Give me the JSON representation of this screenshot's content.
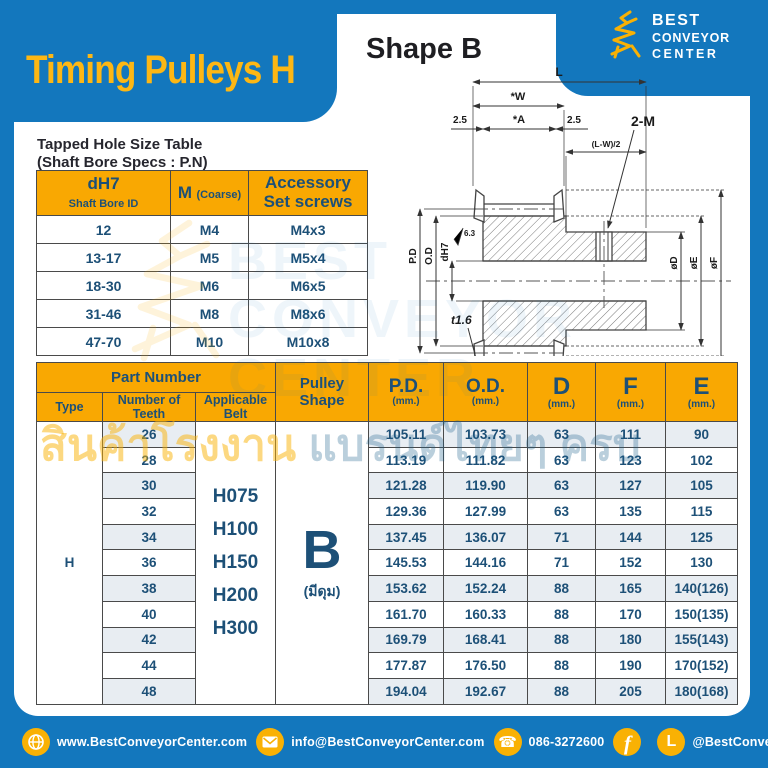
{
  "colors": {
    "blue": "#1377BD",
    "brand_yellow": "#F9B104",
    "title_yellow": "#FDB714",
    "navy_text": "#1D5077",
    "table_header_yellow": "#F9A802",
    "row_stripe": "#E8EDF2"
  },
  "header": {
    "title": "Timing Pulleys H"
  },
  "brand": {
    "lines": [
      "BEST",
      "CONVEYOR",
      "CENTER"
    ]
  },
  "shape_heading": "Shape B",
  "diagram": {
    "dim_l": "L",
    "dim_w": "*W",
    "dim_a": "*A",
    "dim_side": "2.5",
    "dim_lw2": "(L-W)/2",
    "tapped_hole": "2-M",
    "pitch_dia": "P.D",
    "outer_dia": "O.D",
    "bore": "dH7",
    "roughness": "6.3",
    "dia_d": "øD",
    "dia_e": "øE",
    "dia_f": "øF",
    "flange_thickness": "t1.6"
  },
  "tapped_table": {
    "title_line1": "Tapped Hole Size Table",
    "title_line2": "(Shaft Bore Specs : P.N)",
    "headers": [
      {
        "main": "dH7",
        "sub": "Shaft Bore ID"
      },
      {
        "main": "M",
        "sub": "(Coarse)"
      },
      {
        "main": "Accessory",
        "sub": "Set screws"
      }
    ],
    "rows": [
      [
        "12",
        "M4",
        "M4x3"
      ],
      [
        "13-17",
        "M5",
        "M5x4"
      ],
      [
        "18-30",
        "M6",
        "M6x5"
      ],
      [
        "31-46",
        "M8",
        "M8x6"
      ],
      [
        "47-70",
        "M10",
        "M10x8"
      ]
    ]
  },
  "main_table": {
    "group_header": "Part Number",
    "col_type": "Type",
    "col_teeth": "Number of Teeth",
    "col_belt": "Applicable Belt",
    "col_shape": "Pulley Shape",
    "value_headers": [
      {
        "label": "P.D.",
        "unit": "(mm.)"
      },
      {
        "label": "O.D.",
        "unit": "(mm.)"
      },
      {
        "label": "D",
        "unit": "(mm.)"
      },
      {
        "label": "F",
        "unit": "(mm.)"
      },
      {
        "label": "E",
        "unit": "(mm.)"
      }
    ],
    "type_value": "H",
    "belts": [
      "H075",
      "H100",
      "H150",
      "H200",
      "H300"
    ],
    "shape_value": "B",
    "shape_note": "(มีดุม)",
    "rows": [
      [
        "26",
        "105.11",
        "103.73",
        "63",
        "111",
        "90"
      ],
      [
        "28",
        "113.19",
        "111.82",
        "63",
        "123",
        "102"
      ],
      [
        "30",
        "121.28",
        "119.90",
        "63",
        "127",
        "105"
      ],
      [
        "32",
        "129.36",
        "127.99",
        "63",
        "135",
        "115"
      ],
      [
        "34",
        "137.45",
        "136.07",
        "71",
        "144",
        "125"
      ],
      [
        "36",
        "145.53",
        "144.16",
        "71",
        "152",
        "130"
      ],
      [
        "38",
        "153.62",
        "152.24",
        "88",
        "165",
        "140(126)"
      ],
      [
        "40",
        "161.70",
        "160.33",
        "88",
        "170",
        "150(135)"
      ],
      [
        "42",
        "169.79",
        "168.41",
        "88",
        "180",
        "155(143)"
      ],
      [
        "44",
        "177.87",
        "176.50",
        "88",
        "190",
        "170(152)"
      ],
      [
        "48",
        "194.04",
        "192.67",
        "88",
        "205",
        "180(168)"
      ]
    ]
  },
  "watermark": {
    "thai_part1": "สินค้าโรงงาน",
    "thai_part2": " แบรนด์ไทยๆ ครบ",
    "ghost": [
      "BEST",
      "CONVEYOR",
      "CENTER"
    ]
  },
  "footer": {
    "items": [
      {
        "icon": "globe-icon",
        "label": "www.BestConveyorCenter.com"
      },
      {
        "icon": "email-icon",
        "label": "info@BestConveyorCenter.com"
      },
      {
        "icon": "phone-icon",
        "label": "086-3272600"
      },
      {
        "icon": "facebook-icon",
        "label": ""
      },
      {
        "icon": "line-icon",
        "label": "@BestConveyorCenter"
      }
    ]
  }
}
